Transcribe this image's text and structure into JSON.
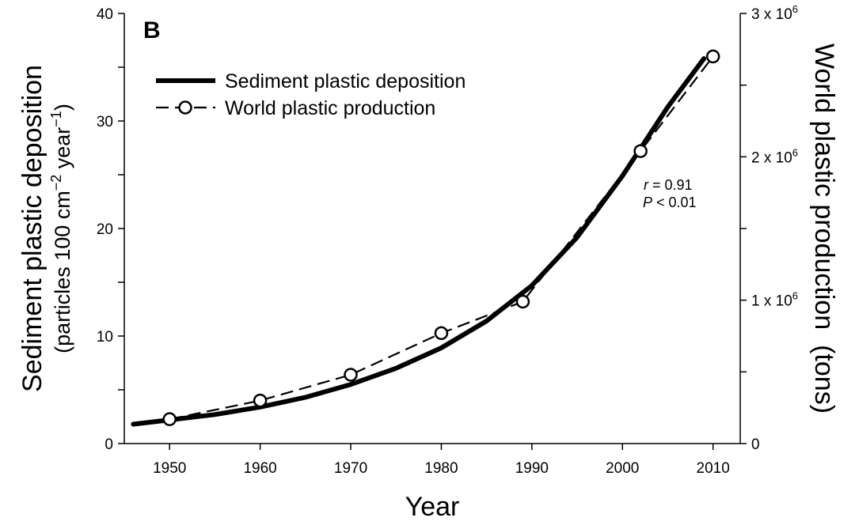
{
  "chart_data": {
    "type": "line",
    "panel_label": "B",
    "x": {
      "label": "Year",
      "range": [
        1945,
        2013
      ],
      "ticks": [
        "1950",
        "1960",
        "1970",
        "1980",
        "1990",
        "2000",
        "2010"
      ]
    },
    "y_left": {
      "label_line1": "Sediment plastic deposition",
      "label_line2": {
        "pre": "(particles 100 cm",
        "sup1": "−2",
        "mid": " year",
        "sup2": "−1",
        "post": ")"
      },
      "range": [
        0,
        40
      ],
      "ticks": [
        "0",
        "10",
        "20",
        "30",
        "40"
      ]
    },
    "y_right": {
      "label": "World plastic production  (tons)",
      "range": [
        0,
        3000000
      ],
      "ticks": [
        {
          "value": 0,
          "label": "0",
          "base": "",
          "exp": ""
        },
        {
          "value": 1000000,
          "label": "",
          "base": "1 x 10",
          "exp": "6"
        },
        {
          "value": 2000000,
          "label": "",
          "base": "2 x 10",
          "exp": "6"
        },
        {
          "value": 3000000,
          "label": "",
          "base": "3 x 10",
          "exp": "6"
        }
      ]
    },
    "series": [
      {
        "name": "Sediment plastic deposition",
        "axis": "left",
        "style": "solid-thick",
        "color": "#000000",
        "x": [
          1946,
          1950,
          1955,
          1960,
          1965,
          1970,
          1975,
          1980,
          1985,
          1990,
          1995,
          2000,
          2005,
          2009
        ],
        "y": [
          1.8,
          2.2,
          2.7,
          3.4,
          4.3,
          5.5,
          7.0,
          8.9,
          11.4,
          14.7,
          19.2,
          24.9,
          31.3,
          35.8
        ]
      },
      {
        "name": "World plastic production",
        "axis": "right",
        "style": "dashed-open-circles",
        "color": "#000000",
        "x": [
          1950,
          1960,
          1970,
          1980,
          1989,
          2002,
          2010
        ],
        "y": [
          170000,
          300000,
          480000,
          770000,
          990000,
          2040000,
          2700000
        ]
      }
    ],
    "annotation": {
      "r_label": "r",
      "r_value": " = 0.91",
      "p_label": "P",
      "p_value": " < 0.01"
    },
    "legend_position": "top-left",
    "grid": false
  }
}
